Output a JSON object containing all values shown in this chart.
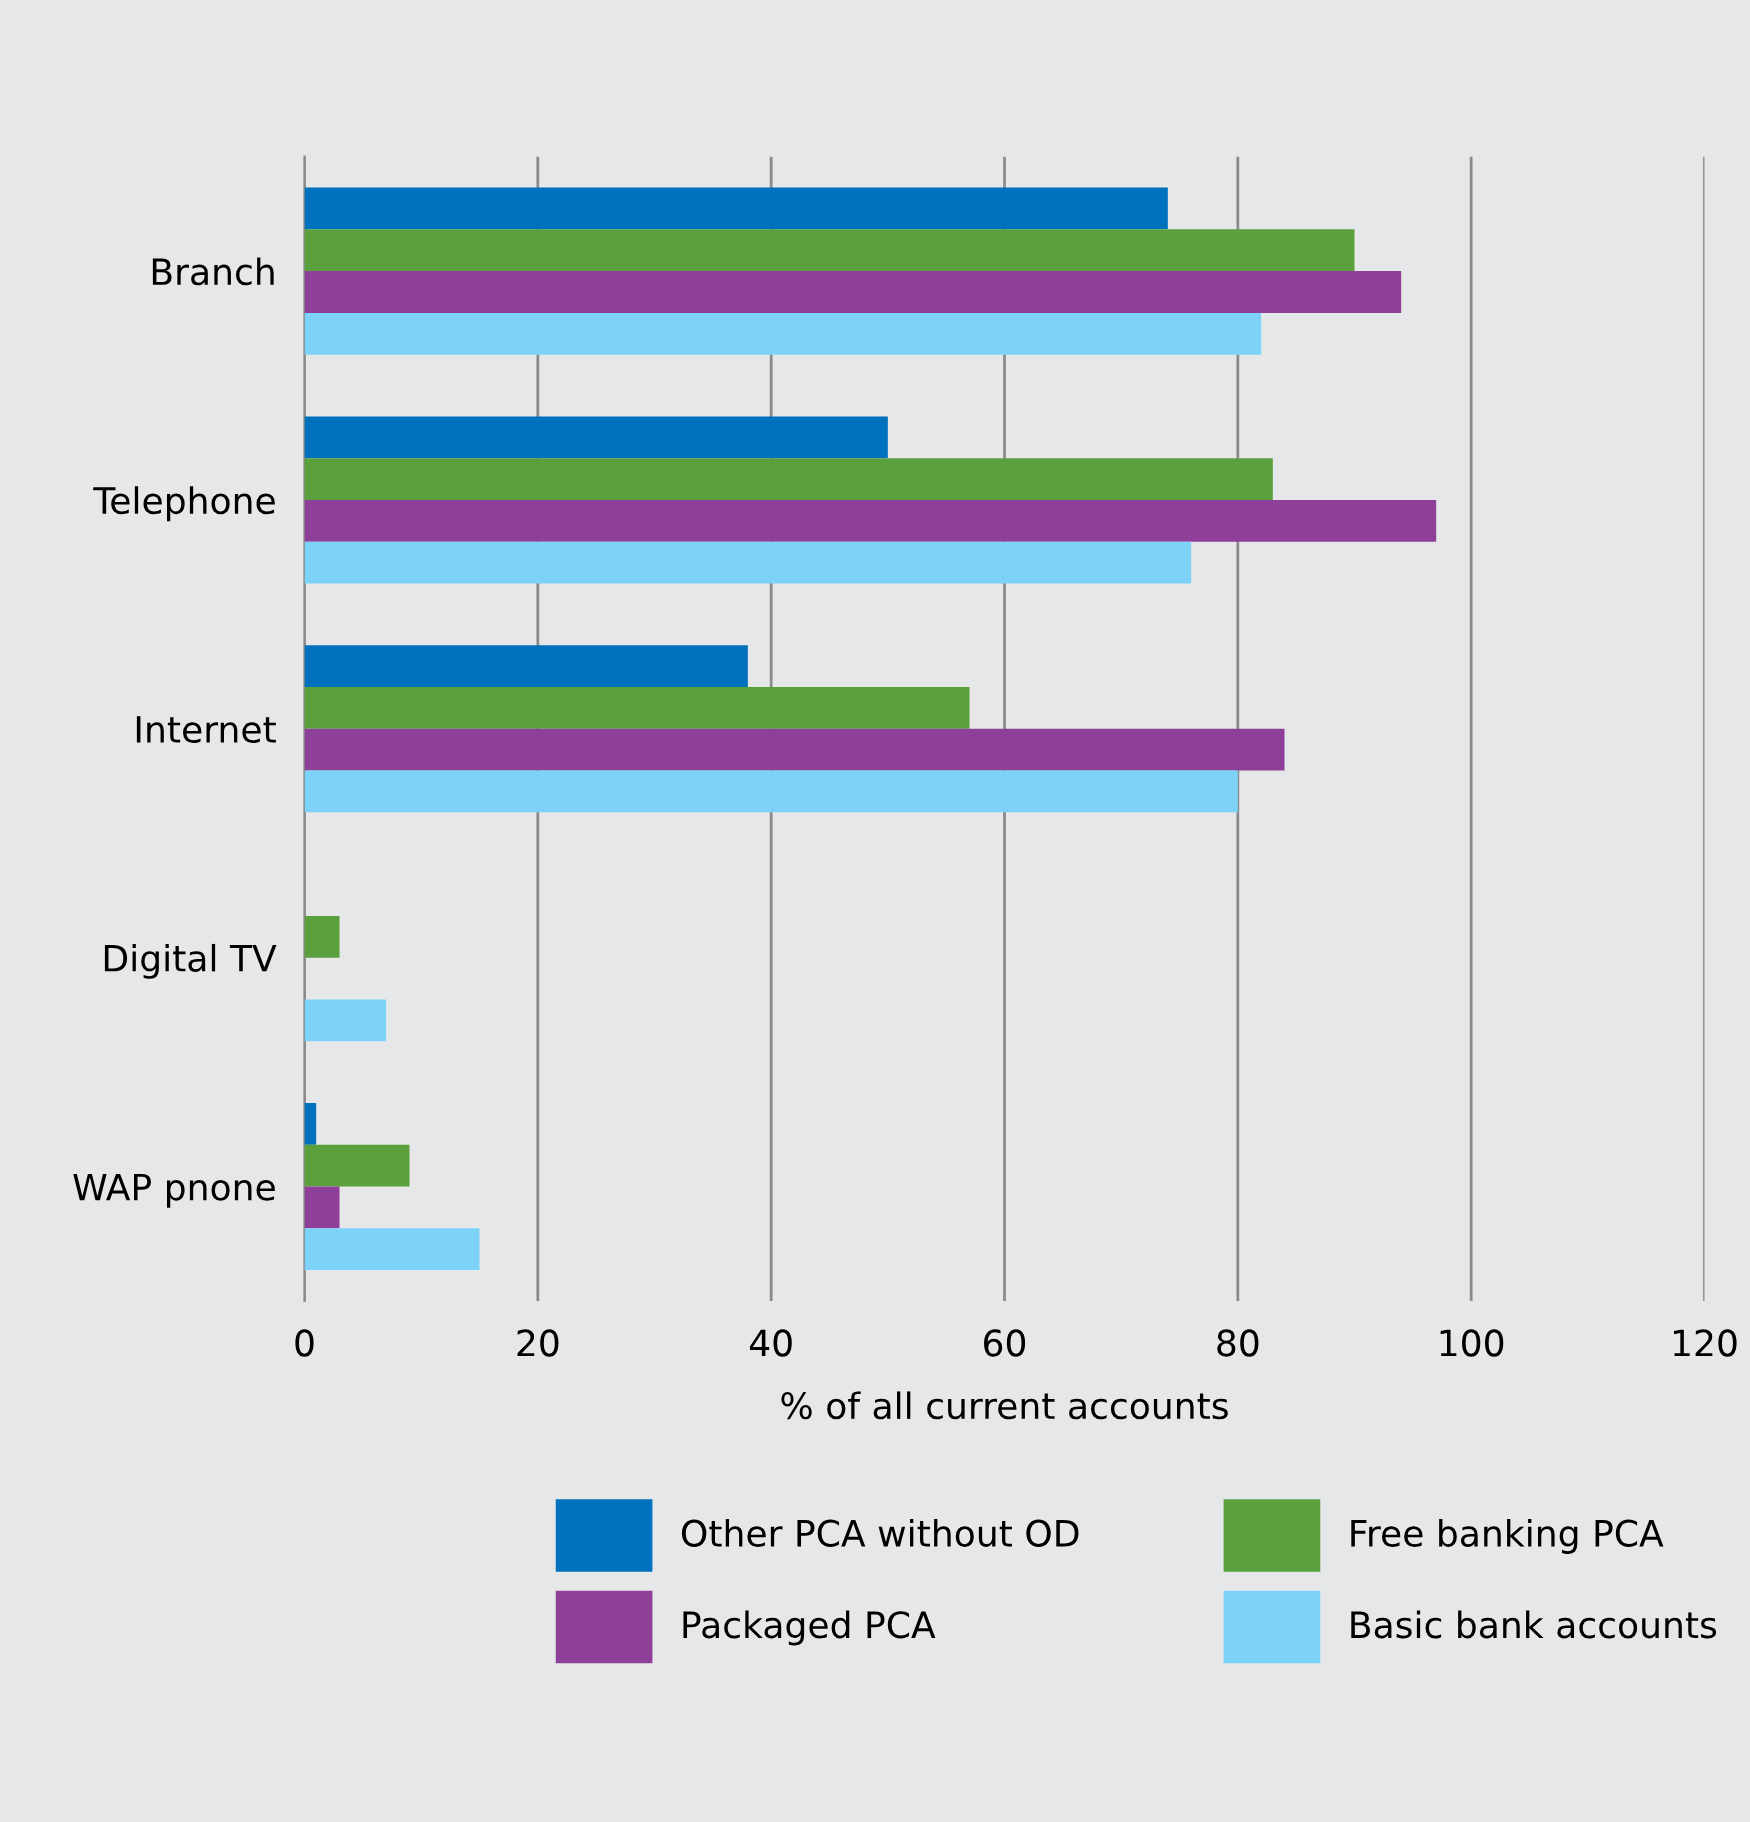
{
  "chart_data": {
    "type": "bar",
    "orientation": "horizontal",
    "xlabel": "% of all current accounts",
    "categories": [
      "Branch",
      "Telephone",
      "Internet",
      "Digital TV",
      "WAP pnone"
    ],
    "series": [
      {
        "name": "Other PCA without OD",
        "color": "#0071bc",
        "values": [
          74,
          50,
          38,
          null,
          1
        ]
      },
      {
        "name": "Free banking PCA",
        "color": "#5aa03c",
        "values": [
          90,
          83,
          57,
          3,
          9
        ]
      },
      {
        "name": "Packaged PCA",
        "color": "#8e3f98",
        "values": [
          94,
          97,
          84,
          null,
          3
        ]
      },
      {
        "name": "Basic bank accounts",
        "color": "#7dd3f7",
        "values": [
          82,
          76,
          80,
          7,
          15
        ]
      }
    ],
    "xlim": [
      0,
      120
    ],
    "xticks": [
      0,
      20,
      40,
      60,
      80,
      100,
      120
    ],
    "grid": "x",
    "legend": "bottom"
  }
}
